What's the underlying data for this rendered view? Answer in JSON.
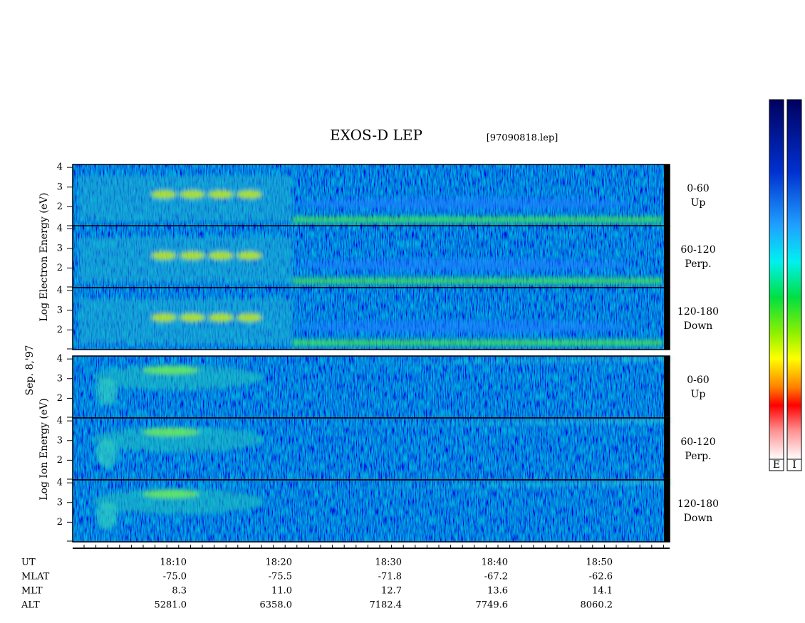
{
  "title": "EXOS-D LEP",
  "file": "[97090818.lep]",
  "date": "Sep. 8,'97",
  "electron_axis_label": "Log Electron Energy (eV)",
  "ion_axis_label": "Log Ion Energy (eV)",
  "panels": [
    {
      "species": "electron",
      "ylim": [
        1,
        4.15
      ],
      "yticks": [
        2,
        3,
        4
      ],
      "pitch": "0-60",
      "direction": "Up"
    },
    {
      "species": "electron",
      "ylim": [
        1,
        4.15
      ],
      "yticks": [
        2,
        3,
        4
      ],
      "pitch": "60-120",
      "direction": "Perp."
    },
    {
      "species": "electron",
      "ylim": [
        1,
        4.15
      ],
      "yticks": [
        2,
        3,
        4
      ],
      "pitch": "120-180",
      "direction": "Down"
    },
    {
      "species": "ion",
      "ylim": [
        1,
        4.15
      ],
      "yticks": [
        2,
        3,
        4
      ],
      "pitch": "0-60",
      "direction": "Up"
    },
    {
      "species": "ion",
      "ylim": [
        1,
        4.15
      ],
      "yticks": [
        2,
        3,
        4
      ],
      "pitch": "60-120",
      "direction": "Perp."
    },
    {
      "species": "ion",
      "ylim": [
        1,
        4.15
      ],
      "yticks": [
        2,
        3,
        4
      ],
      "pitch": "120-180",
      "direction": "Down"
    }
  ],
  "rows": [
    {
      "name": "UT",
      "values": [
        "18:10",
        "18:20",
        "18:30",
        "18:40",
        "18:50"
      ]
    },
    {
      "name": "MLAT",
      "values": [
        "-75.0",
        "-75.5",
        "-71.8",
        "-67.2",
        "-62.6"
      ]
    },
    {
      "name": "MLT",
      "values": [
        "8.3",
        "11.0",
        "12.7",
        "13.6",
        "14.1"
      ]
    },
    {
      "name": "ALT",
      "values": [
        "5281.0",
        "6358.0",
        "7182.4",
        "7749.6",
        "8060.2"
      ]
    }
  ],
  "colorbar": {
    "labels": [
      "E",
      "I"
    ]
  }
}
